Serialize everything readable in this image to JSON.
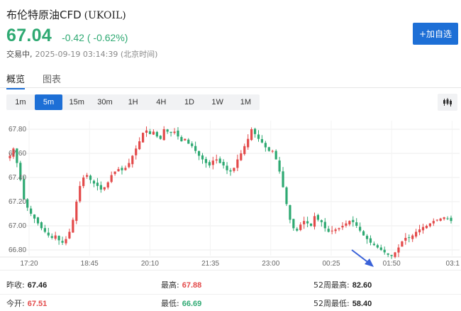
{
  "header": {
    "name": "布伦特原油CFD",
    "code": "(UKOIL)",
    "price": "67.04",
    "change": "-0.42 ( -0.62%)",
    "status": "交易中,",
    "time": "2025-09-19 03:14:39 (北京时间)",
    "watch_button": "+加自选"
  },
  "tabs": [
    {
      "label": "概览",
      "active": true
    },
    {
      "label": "图表",
      "active": false
    }
  ],
  "periods": [
    {
      "label": "1m",
      "active": false
    },
    {
      "label": "5m",
      "active": true
    },
    {
      "label": "15m",
      "active": false
    },
    {
      "label": "30m",
      "active": false
    },
    {
      "label": "1H",
      "active": false
    },
    {
      "label": "4H",
      "active": false
    },
    {
      "label": "1D",
      "active": false
    },
    {
      "label": "1W",
      "active": false
    },
    {
      "label": "1M",
      "active": false
    }
  ],
  "chart_type_icon": "candlestick-icon",
  "colors": {
    "up": "#e34a4a",
    "down": "#2ea972",
    "accent": "#1d6fd6",
    "arrow": "#3a62d8"
  },
  "stats": {
    "prev_close": {
      "label": "昨收:",
      "value": "67.46"
    },
    "high": {
      "label": "最高:",
      "value": "67.88"
    },
    "high_52w": {
      "label": "52周最高:",
      "value": "82.60"
    },
    "open": {
      "label": "今开:",
      "value": "67.51"
    },
    "low": {
      "label": "最低:",
      "value": "66.69"
    },
    "low_52w": {
      "label": "52周最低:",
      "value": "58.40"
    }
  },
  "chart_data": {
    "type": "candlestick",
    "y_ticks": [
      "67.80",
      "67.60",
      "67.40",
      "67.20",
      "67.00",
      "66.80"
    ],
    "y_tick_values": [
      67.8,
      67.6,
      67.4,
      67.2,
      67.0,
      66.8
    ],
    "x_ticks": [
      "17:20",
      "18:45",
      "20:10",
      "21:35",
      "23:00",
      "00:25",
      "01:50",
      "03:1"
    ],
    "ylim": [
      66.69,
      67.88
    ],
    "grid": true,
    "annotation": "blue-arrow pointing at session low near 01:50",
    "close_path": [
      67.58,
      67.64,
      67.52,
      67.38,
      67.22,
      67.15,
      67.1,
      67.06,
      67.02,
      66.98,
      66.95,
      66.92,
      66.9,
      66.92,
      66.88,
      66.86,
      66.89,
      66.95,
      67.05,
      67.2,
      67.33,
      67.4,
      67.42,
      67.38,
      67.35,
      67.33,
      67.3,
      67.32,
      67.36,
      67.42,
      67.45,
      67.47,
      67.46,
      67.48,
      67.52,
      67.58,
      67.64,
      67.7,
      67.77,
      67.79,
      67.76,
      67.78,
      67.74,
      67.72,
      67.8,
      67.78,
      67.77,
      67.78,
      67.74,
      67.7,
      67.72,
      67.68,
      67.66,
      67.62,
      67.58,
      67.55,
      67.52,
      67.5,
      67.54,
      67.55,
      67.52,
      67.5,
      67.46,
      67.45,
      67.48,
      67.55,
      67.6,
      67.66,
      67.72,
      67.8,
      67.76,
      67.72,
      67.69,
      67.65,
      67.62,
      67.62,
      67.55,
      67.45,
      67.32,
      67.18,
      67.05,
      66.98,
      66.96,
      67.01,
      67.04,
      67.02,
      67.0,
      67.08,
      67.05,
      67.03,
      66.98,
      66.95,
      66.96,
      66.97,
      66.98,
      67.0,
      67.02,
      67.04,
      67.03,
      67.0,
      66.96,
      66.92,
      66.89,
      66.86,
      66.84,
      66.82,
      66.8,
      66.78,
      66.76,
      66.75,
      66.78,
      66.82,
      66.87,
      66.9,
      66.9,
      66.92,
      66.95,
      66.97,
      66.99,
      67.0,
      67.02,
      67.04,
      67.05,
      67.06,
      67.07,
      67.06,
      67.04
    ]
  }
}
